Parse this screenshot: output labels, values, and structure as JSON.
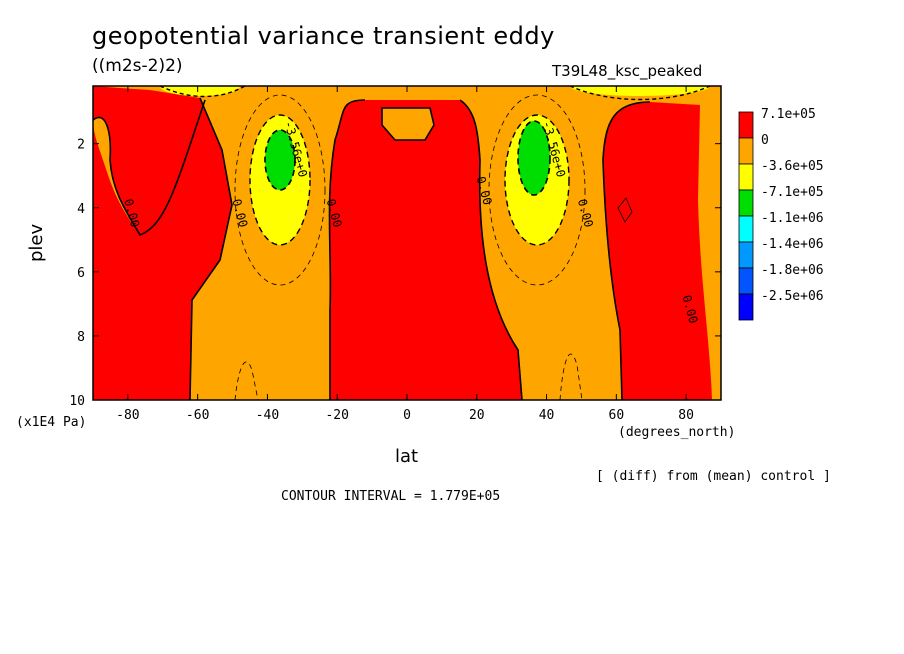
{
  "title": "geopotential variance transient eddy",
  "units": "((m2s-2)2)",
  "run_name": "T39L48_ksc_peaked",
  "axis_unit_y": "(x1E4 Pa)",
  "axis_unit_x": "(degrees_north)",
  "note": "[ (diff) from (mean) control ]",
  "contour_interval": "CONTOUR INTERVAL = 1.779E+05",
  "chart_data": {
    "type": "contour",
    "xlabel": "lat",
    "ylabel": "plev",
    "xlim": [
      -90,
      90
    ],
    "ylim": [
      10,
      0.2
    ],
    "x_ticks": [
      -80,
      -60,
      -40,
      -20,
      0,
      20,
      40,
      60,
      80
    ],
    "x_tick_labels": [
      "-80",
      "-60",
      "-40",
      "-20",
      "0",
      "20",
      "40",
      "60",
      "80"
    ],
    "y_ticks": [
      2,
      4,
      6,
      8,
      10
    ],
    "y_tick_labels": [
      "2",
      "4",
      "6",
      "8",
      "10"
    ],
    "legend": {
      "placement": "right",
      "levels": [
        {
          "label": "7.1e+05",
          "color": "#ff0000"
        },
        {
          "label": "0",
          "color": "#ffa500"
        },
        {
          "label": "-3.6e+05",
          "color": "#ffff00"
        },
        {
          "label": "-7.1e+05",
          "color": "#00dd00"
        },
        {
          "label": "-1.1e+06",
          "color": "#00ffff"
        },
        {
          "label": "-1.4e+06",
          "color": "#0099ff"
        },
        {
          "label": "-1.8e+06",
          "color": "#0055ff"
        },
        {
          "label": "-2.5e+06",
          "color": "#0000ff"
        }
      ]
    },
    "contour_labels": [
      {
        "text": "0.00",
        "lat": -80,
        "plev": 4.2
      },
      {
        "text": "0.00",
        "lat": -49,
        "plev": 4.2
      },
      {
        "text": "0.00",
        "lat": -22,
        "plev": 4.2
      },
      {
        "text": "-3.56e+0",
        "lat": -33,
        "plev": 2.2
      },
      {
        "text": "0.00",
        "lat": 21,
        "plev": 3.5
      },
      {
        "text": "-3.56e+0",
        "lat": 41,
        "plev": 2.2
      },
      {
        "text": "0.00",
        "lat": 50,
        "plev": 4.2
      },
      {
        "text": "0.00",
        "lat": 80,
        "plev": 7.2
      }
    ]
  }
}
